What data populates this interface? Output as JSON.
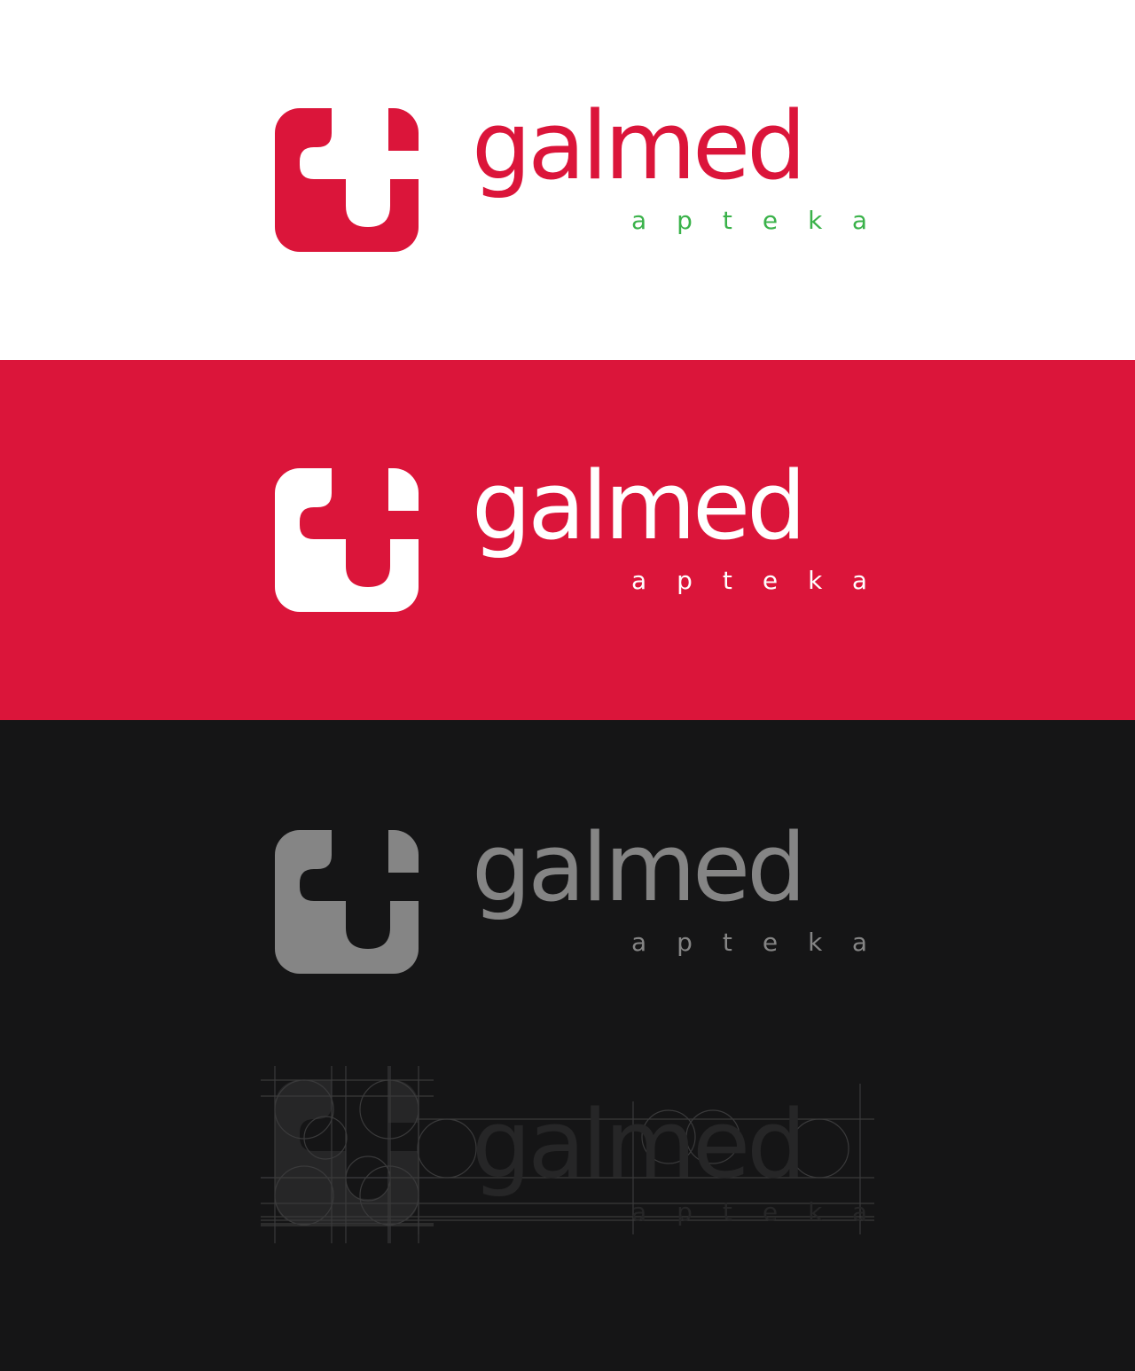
{
  "brand": {
    "name": "galmed",
    "subtitle": "apteka"
  },
  "variants": [
    {
      "background": "#ffffff",
      "icon_color": "#db153a",
      "cutout_color": "#ffffff",
      "name_color": "#db153a",
      "subtitle_color": "#3ab24a"
    },
    {
      "background": "#db153a",
      "icon_color": "#ffffff",
      "cutout_color": "#db153a",
      "name_color": "#ffffff",
      "subtitle_color": "#ffffff"
    },
    {
      "background": "#151516",
      "icon_color": "#858585",
      "cutout_color": "#151516",
      "name_color": "#858585",
      "subtitle_color": "#858585"
    }
  ],
  "construction_grid": {
    "line_color": "#3a3a3b",
    "fill_color": "#262627"
  },
  "icons": {
    "logo": "medical-cross-icon"
  }
}
